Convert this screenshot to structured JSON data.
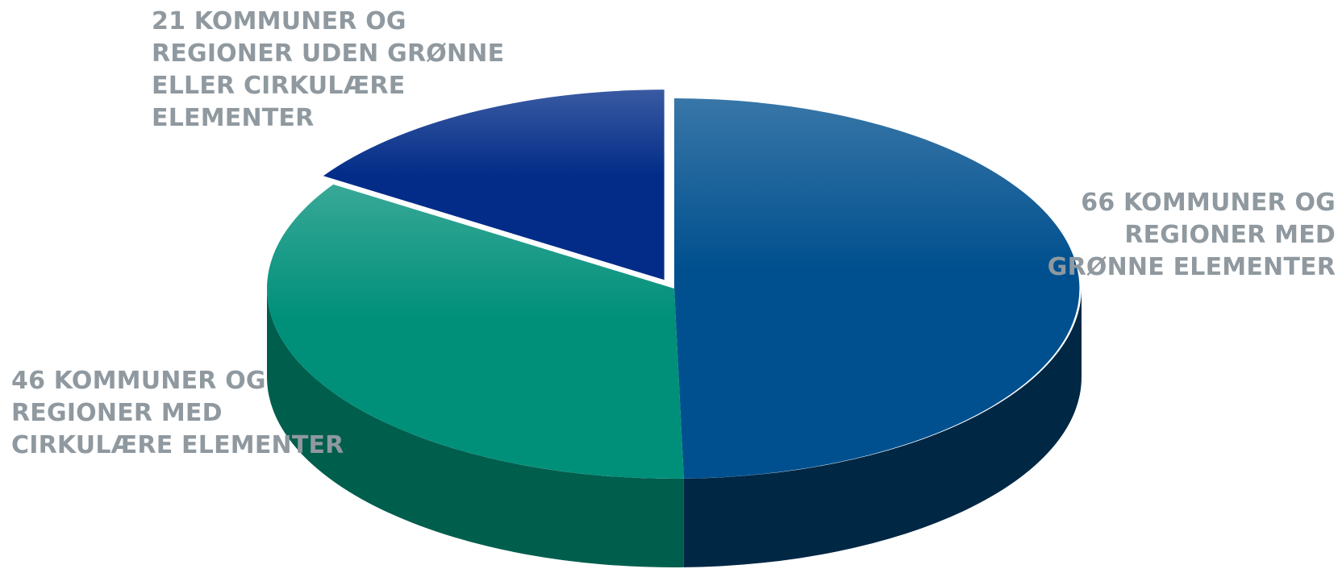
{
  "chart_data": {
    "type": "pie",
    "title": "",
    "slices": [
      {
        "label_lines": [
          "66 KOMMUNER OG",
          "REGIONER MED",
          "GRØNNE ELEMENTER"
        ],
        "value": 66,
        "color": "#00508f",
        "side_color": "#002744"
      },
      {
        "label_lines": [
          "46 KOMMUNER OG",
          "REGIONER MED",
          "CIRKULÆRE ELEMENTER"
        ],
        "value": 46,
        "color": "#00907a",
        "side_color": "#005e4d"
      },
      {
        "label_lines": [
          "21 KOMMUNER OG",
          "REGIONER UDEN GRØNNE",
          "ELLER CIRKULÆRE",
          "ELEMENTER"
        ],
        "value": 21,
        "color": "#022c88",
        "side_color": "#001545",
        "exploded": true
      }
    ],
    "label_color": "#8f999f"
  }
}
